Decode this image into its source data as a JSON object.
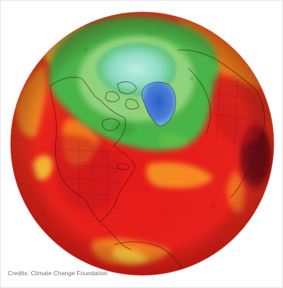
{
  "image": {
    "credit_text": "Credits: Climate Change Foundation"
  },
  "colors": {
    "hot_red": "#e8201c",
    "orange": "#f6821f",
    "yellow": "#f5c930",
    "green": "#4cb848",
    "light_green": "#9fd68c",
    "ice_cyan": "#a6e3d8",
    "greenland_blue": "#3c6fd0",
    "dark_red": "#7a0f16"
  }
}
